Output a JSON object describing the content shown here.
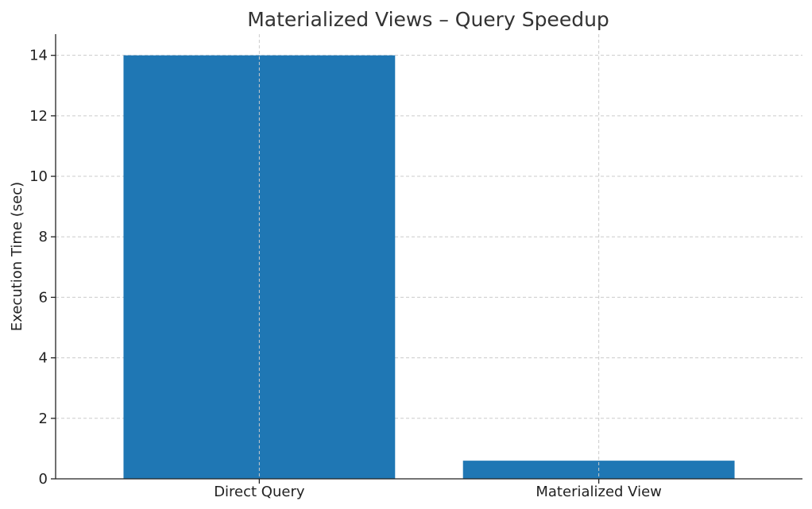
{
  "chart_data": {
    "type": "bar",
    "title": "Materialized Views – Query Speedup",
    "xlabel": "",
    "ylabel": "Execution Time (sec)",
    "categories": [
      "Direct Query",
      "Materialized View"
    ],
    "values": [
      14.0,
      0.6
    ],
    "ylim": [
      0,
      14.7
    ],
    "yticks": [
      0,
      2,
      4,
      6,
      8,
      10,
      12,
      14
    ],
    "grid": true,
    "legend": "none",
    "bar_color": "#1f77b4"
  }
}
